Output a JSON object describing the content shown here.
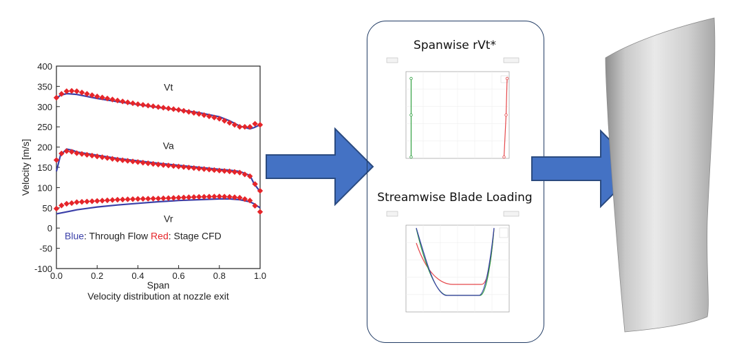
{
  "chart_data": [
    {
      "type": "line",
      "xlabel": "Span",
      "ylabel": "Velocity [m/s]",
      "subtitle": "Velocity distribution at nozzle exit",
      "xlim": [
        0,
        1
      ],
      "ylim": [
        -100,
        400
      ],
      "xticks": [
        "0.0",
        "0.2",
        "0.4",
        "0.6",
        "0.8",
        "1.0"
      ],
      "yticks": [
        "400",
        "350",
        "300",
        "250",
        "200",
        "150",
        "100",
        "50",
        "0",
        "-50",
        "-100"
      ],
      "legend": {
        "blue_key": "Blue",
        "blue_text": ": Through Flow",
        "red_key": "Red",
        "red_text": ": Stage CFD"
      },
      "x": [
        0,
        0.02,
        0.05,
        0.08,
        0.1,
        0.2,
        0.3,
        0.4,
        0.5,
        0.6,
        0.7,
        0.8,
        0.85,
        0.9,
        0.95,
        0.97,
        1.0
      ],
      "series": [
        {
          "name": "Vt",
          "color": "#3a3fa8",
          "kind": "line",
          "values": [
            320,
            328,
            332,
            331,
            330,
            320,
            312,
            305,
            298,
            292,
            285,
            275,
            265,
            252,
            245,
            248,
            255
          ]
        },
        {
          "name": "Vt",
          "color": "#e5252a",
          "kind": "marker",
          "values": [
            322,
            330,
            338,
            339,
            338,
            325,
            315,
            306,
            299,
            292,
            282,
            270,
            260,
            250,
            250,
            258,
            255
          ]
        },
        {
          "name": "Va",
          "color": "#3a3fa8",
          "kind": "line",
          "values": [
            140,
            180,
            195,
            192,
            188,
            180,
            172,
            166,
            160,
            155,
            150,
            145,
            143,
            140,
            130,
            110,
            90
          ]
        },
        {
          "name": "Va",
          "color": "#e5252a",
          "kind": "marker",
          "values": [
            168,
            183,
            190,
            188,
            185,
            177,
            169,
            163,
            157,
            152,
            147,
            142,
            140,
            137,
            128,
            112,
            92
          ]
        },
        {
          "name": "Vr",
          "color": "#3a3fa8",
          "kind": "line",
          "values": [
            35,
            37,
            40,
            43,
            45,
            52,
            57,
            61,
            65,
            68,
            70,
            72,
            72,
            70,
            65,
            60,
            50
          ]
        },
        {
          "name": "Vr",
          "color": "#e5252a",
          "kind": "marker",
          "values": [
            48,
            55,
            60,
            62,
            64,
            67,
            70,
            72,
            73,
            75,
            77,
            78,
            77,
            75,
            68,
            58,
            40
          ]
        }
      ],
      "annotations": [
        "Vt",
        "Va",
        "Vr"
      ]
    },
    {
      "type": "line",
      "title": "Spanwise rVt*",
      "series": [
        {
          "color": "#2f9e3f",
          "values": [
            0.05,
            0.05,
            0.05
          ]
        },
        {
          "color": "#e5474a",
          "values": [
            0.98,
            0.97,
            0.95
          ]
        }
      ]
    },
    {
      "type": "line",
      "title": "Streamwise Blade Loading",
      "series": [
        {
          "color": "#e5474a"
        },
        {
          "color": "#2f9e3f"
        },
        {
          "color": "#3a3fa8"
        }
      ]
    }
  ],
  "arrows": {
    "color": "#4472c4",
    "stroke": "#2a4a7f"
  }
}
